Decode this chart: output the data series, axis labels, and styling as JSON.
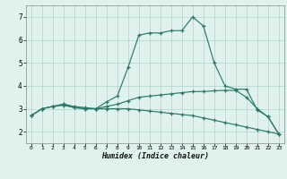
{
  "xlabel": "Humidex (Indice chaleur)",
  "bg_color": "#dff2ee",
  "line_color": "#2a7a6a",
  "grid_color": "#aed4ca",
  "xlim": [
    -0.5,
    23.5
  ],
  "ylim": [
    1.5,
    7.5
  ],
  "yticks": [
    2,
    3,
    4,
    5,
    6,
    7
  ],
  "xticks": [
    0,
    1,
    2,
    3,
    4,
    5,
    6,
    7,
    8,
    9,
    10,
    11,
    12,
    13,
    14,
    15,
    16,
    17,
    18,
    19,
    20,
    21,
    22,
    23
  ],
  "line1_x": [
    0,
    1,
    2,
    3,
    4,
    5,
    6,
    7,
    8,
    9,
    10,
    11,
    12,
    13,
    14,
    15,
    16,
    17,
    18,
    19,
    20,
    21,
    22,
    23
  ],
  "line1_y": [
    2.7,
    3.0,
    3.1,
    3.2,
    3.05,
    3.0,
    3.0,
    3.0,
    3.0,
    3.0,
    2.95,
    2.9,
    2.85,
    2.8,
    2.75,
    2.7,
    2.6,
    2.5,
    2.4,
    2.3,
    2.2,
    2.1,
    2.0,
    1.9
  ],
  "line2_x": [
    0,
    1,
    2,
    3,
    4,
    5,
    6,
    7,
    8,
    9,
    10,
    11,
    12,
    13,
    14,
    15,
    16,
    17,
    18,
    19,
    20,
    21,
    22,
    23
  ],
  "line2_y": [
    2.7,
    3.0,
    3.1,
    3.2,
    3.1,
    3.05,
    3.0,
    3.3,
    3.55,
    4.8,
    6.2,
    6.3,
    6.3,
    6.4,
    6.4,
    7.0,
    6.6,
    5.0,
    4.0,
    3.85,
    3.85,
    2.95,
    2.65,
    1.9
  ],
  "line3_x": [
    0,
    1,
    2,
    3,
    4,
    5,
    6,
    7,
    8,
    9,
    10,
    11,
    12,
    13,
    14,
    15,
    16,
    17,
    18,
    19,
    20,
    21,
    22,
    23
  ],
  "line3_y": [
    2.7,
    3.0,
    3.1,
    3.15,
    3.05,
    3.0,
    3.0,
    3.1,
    3.2,
    3.35,
    3.5,
    3.55,
    3.6,
    3.65,
    3.7,
    3.75,
    3.75,
    3.78,
    3.8,
    3.8,
    3.5,
    3.0,
    2.65,
    1.9
  ]
}
